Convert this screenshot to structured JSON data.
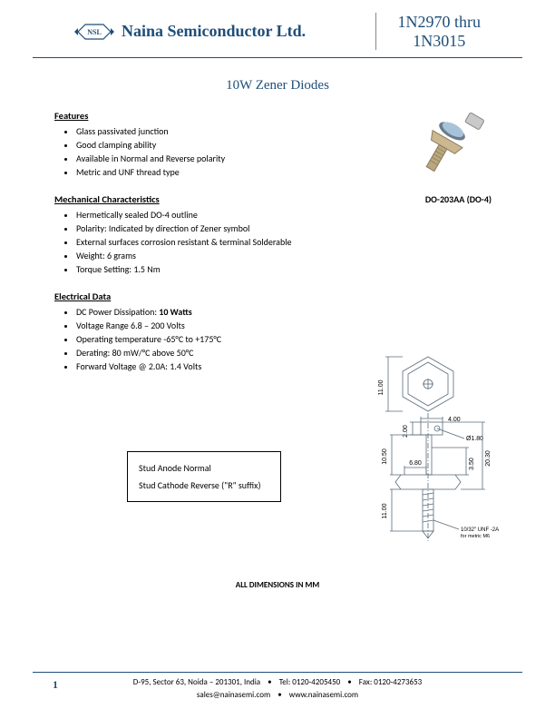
{
  "header": {
    "logo_text": "NSL",
    "company": "Naina Semiconductor Ltd.",
    "range_line1": "1N2970 thru",
    "range_line2": "1N3015"
  },
  "title": "10W Zener Diodes",
  "sections": {
    "features": {
      "heading": "Features",
      "items": [
        "Glass passivated junction",
        "Good clamping ability",
        "Available in Normal and Reverse polarity",
        "Metric and UNF thread type"
      ]
    },
    "mechanical": {
      "heading": "Mechanical Characteristics",
      "items": [
        "Hermetically sealed DO-4 outline",
        "Polarity: Indicated by direction of Zener symbol",
        "External surfaces corrosion resistant & terminal Solderable",
        "Weight: 6 grams",
        "Torque Setting: 1.5 Nm"
      ]
    },
    "electrical": {
      "heading": "Electrical Data",
      "items_html": [
        "DC Power Dissipation: <b>10 Watts</b>",
        "Voltage Range 6.8 – 200 Volts",
        "Operating temperature -65°C to +175°C",
        "Derating: 80 mW/°C above 50°C",
        "Forward Voltage @ 2.0A: 1.4 Volts"
      ]
    }
  },
  "package": {
    "caption": "DO-203AA (DO-4)"
  },
  "polarity_box": {
    "line1": "Stud Anode Normal",
    "line2": "Stud Cathode Reverse (\"R\" suffix)"
  },
  "dimensions": {
    "note": "ALL DIMENSIONS IN MM",
    "values": {
      "hex_height": "11.00",
      "tab_width": "4.00",
      "tab_offset": "2.00",
      "body_dia": "Ø1.80",
      "overall_len": "20.30",
      "lead_len": "10.50",
      "hex_flat": "6.80",
      "mid_len": "3.50",
      "stud_len": "11.00",
      "thread": "10/32\" UNF -2A",
      "thread_alt": "for metric M6"
    }
  },
  "footer": {
    "page": "1",
    "address": "D-95, Sector 63, Noida – 201301, India",
    "tel": "Tel: 0120-4205450",
    "fax": "Fax: 0120-4273653",
    "email": "sales@nainasemi.com",
    "web": "www.nainasemi.com"
  },
  "colors": {
    "brand": "#1f4e79",
    "text": "#000000",
    "drawing_line": "#5a6b7a"
  }
}
